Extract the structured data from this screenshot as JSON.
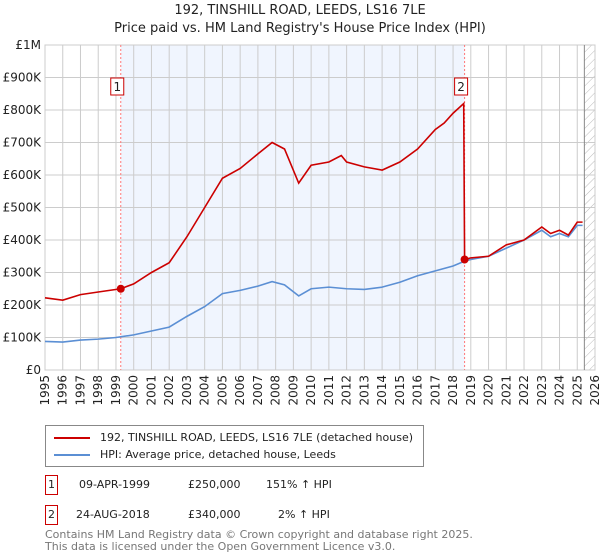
{
  "chart_data": {
    "type": "line",
    "title": "192, TINSHILL ROAD, LEEDS, LS16 7LE",
    "subtitle": "Price paid vs. HM Land Registry's House Price Index (HPI)",
    "xlim": [
      1995,
      2026
    ],
    "ylim": [
      0,
      1000000
    ],
    "x_ticks": [
      "1995",
      "1996",
      "1997",
      "1998",
      "1999",
      "2000",
      "2001",
      "2002",
      "2003",
      "2004",
      "2005",
      "2006",
      "2007",
      "2008",
      "2009",
      "2010",
      "2011",
      "2012",
      "2013",
      "2014",
      "2015",
      "2016",
      "2017",
      "2018",
      "2019",
      "2020",
      "2021",
      "2022",
      "2023",
      "2024",
      "2025",
      "2026"
    ],
    "y_ticks": [
      {
        "v": 0,
        "l": "£0"
      },
      {
        "v": 100000,
        "l": "£100K"
      },
      {
        "v": 200000,
        "l": "£200K"
      },
      {
        "v": 300000,
        "l": "£300K"
      },
      {
        "v": 400000,
        "l": "£400K"
      },
      {
        "v": 500000,
        "l": "£500K"
      },
      {
        "v": 600000,
        "l": "£600K"
      },
      {
        "v": 700000,
        "l": "£700K"
      },
      {
        "v": 800000,
        "l": "£800K"
      },
      {
        "v": 900000,
        "l": "£900K"
      },
      {
        "v": 1000000,
        "l": "£1M"
      }
    ],
    "grid": true,
    "series": [
      {
        "name": "192, TINSHILL ROAD, LEEDS, LS16 7LE (detached house)",
        "color": "#cc0000",
        "x": [
          1995,
          1996,
          1997,
          1998,
          1999.27,
          2000,
          2001,
          2002,
          2003,
          2004,
          2005,
          2006,
          2007,
          2007.8,
          2008.5,
          2009.3,
          2010,
          2011,
          2011.7,
          2012,
          2013,
          2014,
          2015,
          2016,
          2017,
          2017.5,
          2018,
          2018.6,
          2018.65,
          2019,
          2020,
          2021,
          2022,
          2023,
          2023.5,
          2024,
          2024.5,
          2025,
          2025.3
        ],
        "y": [
          222000,
          215000,
          232000,
          240000,
          250000,
          265000,
          300000,
          330000,
          410000,
          500000,
          590000,
          620000,
          665000,
          700000,
          680000,
          575000,
          630000,
          640000,
          660000,
          640000,
          625000,
          615000,
          640000,
          680000,
          740000,
          760000,
          790000,
          820000,
          340000,
          345000,
          350000,
          385000,
          400000,
          440000,
          420000,
          430000,
          415000,
          455000,
          455000
        ]
      },
      {
        "name": "HPI: Average price, detached house, Leeds",
        "color": "#5b8fd4",
        "x": [
          1995,
          1996,
          1997,
          1998,
          1999,
          2000,
          2001,
          2002,
          2003,
          2004,
          2005,
          2006,
          2007,
          2007.8,
          2008.5,
          2009.3,
          2010,
          2011,
          2012,
          2013,
          2014,
          2015,
          2016,
          2017,
          2018,
          2018.65,
          2019,
          2020,
          2021,
          2022,
          2023,
          2023.5,
          2024,
          2024.5,
          2025,
          2025.3
        ],
        "y": [
          88000,
          86000,
          92000,
          95000,
          100000,
          108000,
          120000,
          132000,
          165000,
          195000,
          235000,
          245000,
          258000,
          272000,
          262000,
          228000,
          250000,
          255000,
          250000,
          248000,
          255000,
          270000,
          290000,
          305000,
          320000,
          335000,
          340000,
          350000,
          375000,
          400000,
          430000,
          410000,
          420000,
          410000,
          445000,
          445000
        ]
      }
    ],
    "sales": [
      {
        "id": "1",
        "date": "09-APR-1999",
        "price": "£250,000",
        "hpi": "151% ↑ HPI",
        "x": 1999.27,
        "y": 250000
      },
      {
        "id": "2",
        "date": "24-AUG-2018",
        "price": "£340,000",
        "hpi": "2% ↑ HPI",
        "x": 2018.65,
        "y": 340000
      }
    ],
    "forecast_start": 2025.4
  },
  "footer": [
    "Contains HM Land Registry data © Crown copyright and database right 2025.",
    "This data is licensed under the Open Government Licence v3.0."
  ]
}
